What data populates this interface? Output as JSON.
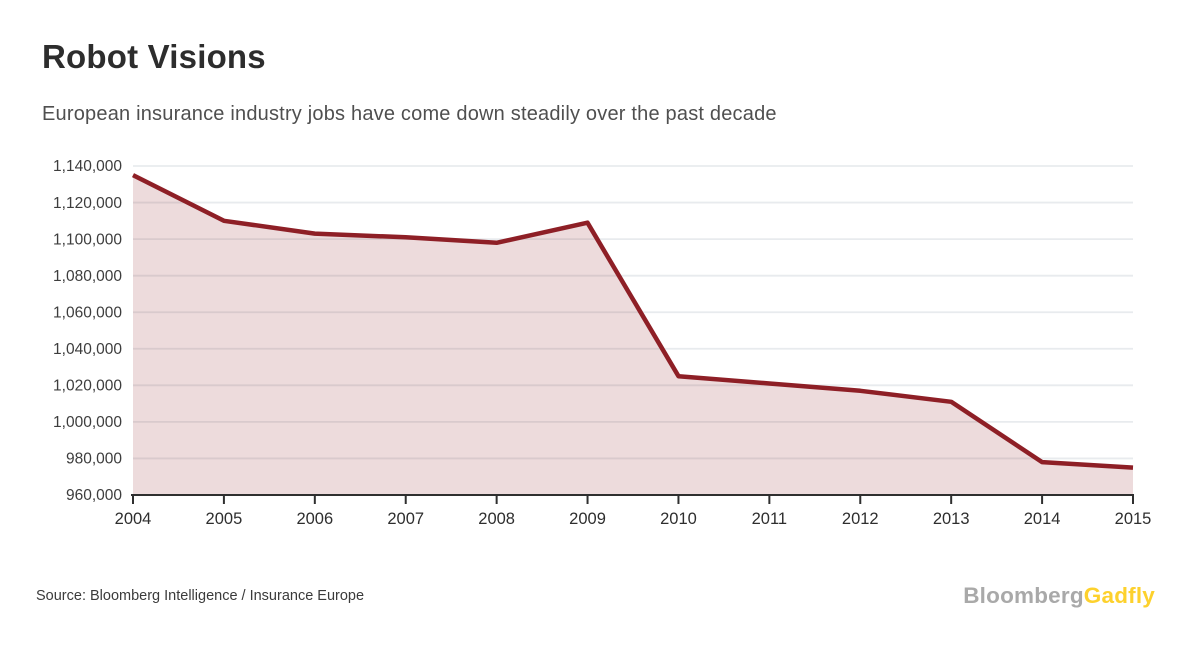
{
  "header": {
    "title": "Robot Visions",
    "subtitle": "European insurance industry jobs have come down steadily over the past decade"
  },
  "footer": {
    "source": "Source: Bloomberg Intelligence / Insurance Europe",
    "logo_gray_text": "Bloomberg",
    "logo_yellow_text": "Gadfly"
  },
  "colors": {
    "line": "#8e1f26",
    "fill": "rgba(142,31,38,0.16)",
    "grid": "#e8ebee",
    "axis": "#2f2f2f",
    "y_label": "#3d3d3d",
    "x_label": "#2e2e2e",
    "logo_gray": "#a9a9a9",
    "logo_yellow": "#fdd12d"
  },
  "chart_data": {
    "type": "area",
    "title": "Robot Visions",
    "subtitle": "European insurance industry jobs have come down steadily over the past decade",
    "xlabel": "",
    "ylabel": "",
    "categories": [
      2004,
      2005,
      2006,
      2007,
      2008,
      2009,
      2010,
      2011,
      2012,
      2013,
      2014,
      2015
    ],
    "values": [
      1135000,
      1110000,
      1103000,
      1101000,
      1098000,
      1109000,
      1025000,
      1021000,
      1017000,
      1011000,
      978000,
      975000
    ],
    "ylim": [
      960000,
      1140000
    ],
    "ytick_step": 20000,
    "grid": true,
    "legend": false
  }
}
